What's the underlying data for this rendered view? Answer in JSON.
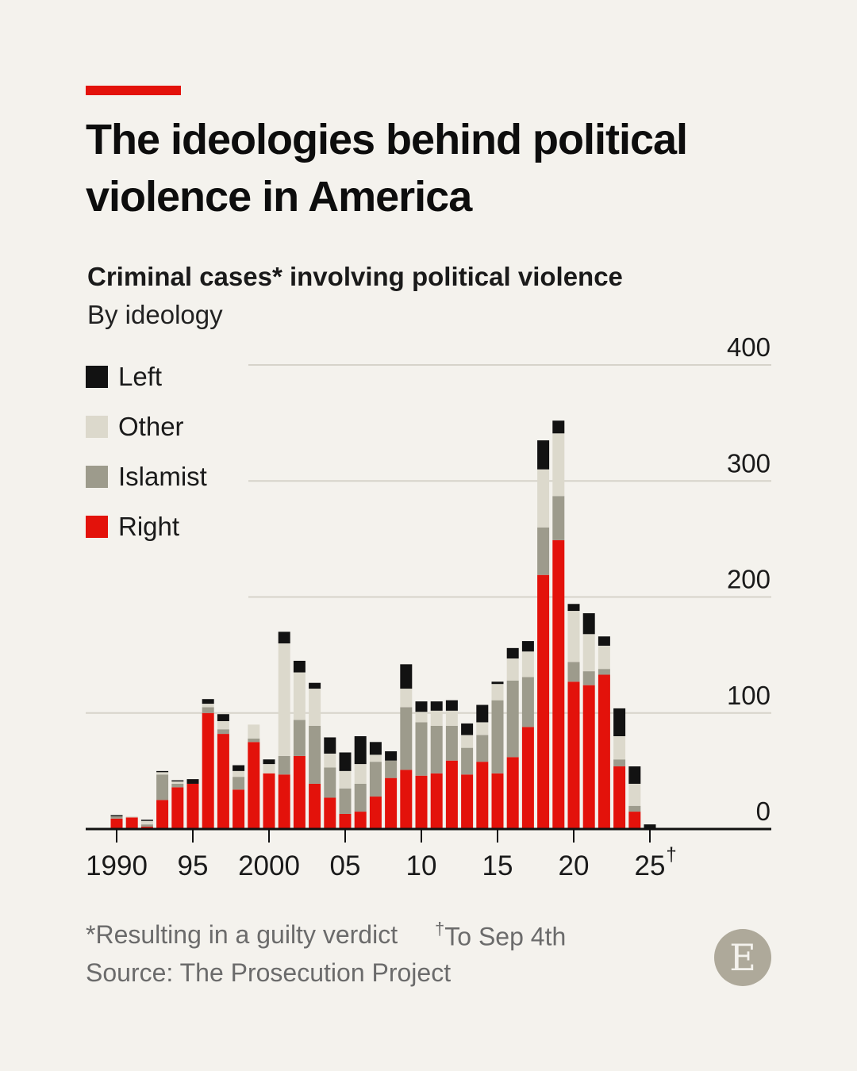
{
  "header": {
    "title": "The ideologies behind political violence in America"
  },
  "chart_data": {
    "type": "bar",
    "stacked": true,
    "title": "Criminal cases* involving political violence",
    "subtitle": "By ideology",
    "xlabel": "",
    "ylabel": "",
    "ylim": [
      0,
      400
    ],
    "yticks": [
      "0",
      "100",
      "200",
      "300",
      "400"
    ],
    "xticks": [
      {
        "year": 1990,
        "label": "1990"
      },
      {
        "year": 1995,
        "label": "95"
      },
      {
        "year": 2000,
        "label": "2000"
      },
      {
        "year": 2005,
        "label": "05"
      },
      {
        "year": 2010,
        "label": "10"
      },
      {
        "year": 2015,
        "label": "15"
      },
      {
        "year": 2020,
        "label": "20"
      },
      {
        "year": 2025,
        "label": "25",
        "marker": "†"
      }
    ],
    "grid": true,
    "legend_position": "top-left",
    "categories": [
      1990,
      1991,
      1992,
      1993,
      1994,
      1995,
      1996,
      1997,
      1998,
      1999,
      2000,
      2001,
      2002,
      2003,
      2004,
      2005,
      2006,
      2007,
      2008,
      2009,
      2010,
      2011,
      2012,
      2013,
      2014,
      2015,
      2016,
      2017,
      2018,
      2019,
      2020,
      2021,
      2022,
      2023,
      2024,
      2025
    ],
    "series": [
      {
        "name": "Right",
        "color": "#e3120b",
        "values": [
          9,
          10,
          2,
          25,
          36,
          39,
          100,
          82,
          34,
          75,
          48,
          47,
          63,
          39,
          27,
          13,
          15,
          28,
          44,
          51,
          46,
          48,
          59,
          47,
          58,
          48,
          62,
          88,
          219,
          249,
          127,
          124,
          133,
          54,
          15,
          0
        ]
      },
      {
        "name": "Islamist",
        "color": "#9d9b8c",
        "values": [
          2,
          0,
          2,
          22,
          3,
          0,
          5,
          4,
          11,
          3,
          0,
          16,
          31,
          50,
          26,
          22,
          24,
          30,
          15,
          54,
          46,
          41,
          30,
          23,
          23,
          63,
          66,
          43,
          41,
          38,
          17,
          12,
          5,
          6,
          5,
          0
        ]
      },
      {
        "name": "Other",
        "color": "#dcd9cc",
        "values": [
          0,
          1,
          3,
          2,
          2,
          0,
          3,
          7,
          5,
          12,
          8,
          97,
          41,
          32,
          12,
          15,
          17,
          6,
          0,
          16,
          9,
          13,
          13,
          11,
          11,
          14,
          19,
          22,
          50,
          54,
          44,
          32,
          20,
          20,
          19,
          1
        ]
      },
      {
        "name": "Left",
        "color": "#121212",
        "values": [
          1,
          0,
          1,
          1,
          1,
          4,
          4,
          6,
          5,
          0,
          4,
          10,
          10,
          5,
          14,
          16,
          24,
          11,
          8,
          21,
          9,
          8,
          9,
          10,
          15,
          2,
          9,
          9,
          25,
          11,
          6,
          18,
          8,
          24,
          15,
          3
        ]
      }
    ],
    "legend_order": [
      "Left",
      "Other",
      "Islamist",
      "Right"
    ]
  },
  "footer": {
    "note_guilty": "*Resulting in a guilty verdict",
    "note_marker": "†",
    "note_date": "To Sep 4th",
    "source": "Source: The Prosecution Project",
    "logo_letter": "E"
  }
}
